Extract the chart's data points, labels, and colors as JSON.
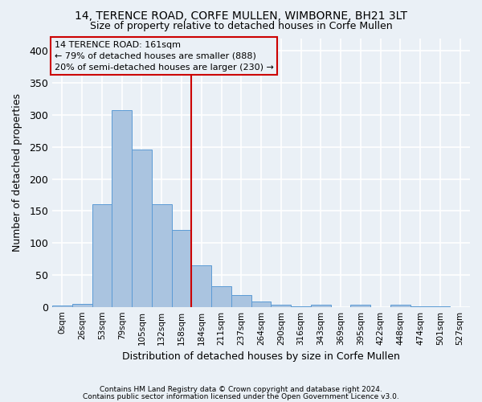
{
  "title1": "14, TERENCE ROAD, CORFE MULLEN, WIMBORNE, BH21 3LT",
  "title2": "Size of property relative to detached houses in Corfe Mullen",
  "xlabel": "Distribution of detached houses by size in Corfe Mullen",
  "ylabel": "Number of detached properties",
  "footer1": "Contains HM Land Registry data © Crown copyright and database right 2024.",
  "footer2": "Contains public sector information licensed under the Open Government Licence v3.0.",
  "annotation_line1": "14 TERENCE ROAD: 161sqm",
  "annotation_line2": "← 79% of detached houses are smaller (888)",
  "annotation_line3": "20% of semi-detached houses are larger (230) →",
  "bar_values": [
    2,
    5,
    160,
    308,
    246,
    160,
    120,
    65,
    32,
    18,
    9,
    3,
    1,
    3,
    0,
    3,
    0,
    3,
    1,
    1,
    0
  ],
  "bin_labels": [
    "0sqm",
    "26sqm",
    "53sqm",
    "79sqm",
    "105sqm",
    "132sqm",
    "158sqm",
    "184sqm",
    "211sqm",
    "237sqm",
    "264sqm",
    "290sqm",
    "316sqm",
    "343sqm",
    "369sqm",
    "395sqm",
    "422sqm",
    "448sqm",
    "474sqm",
    "501sqm",
    "527sqm"
  ],
  "bar_color": "#aac4e0",
  "bar_edge_color": "#5b9bd5",
  "vline_x": 6.5,
  "vline_color": "#cc0000",
  "bg_color": "#eaf0f6",
  "grid_color": "#ffffff",
  "ylim": [
    0,
    420
  ],
  "yticks": [
    0,
    50,
    100,
    150,
    200,
    250,
    300,
    350,
    400
  ],
  "annotation_box_edge": "#cc0000",
  "title_fontsize": 10,
  "subtitle_fontsize": 9
}
